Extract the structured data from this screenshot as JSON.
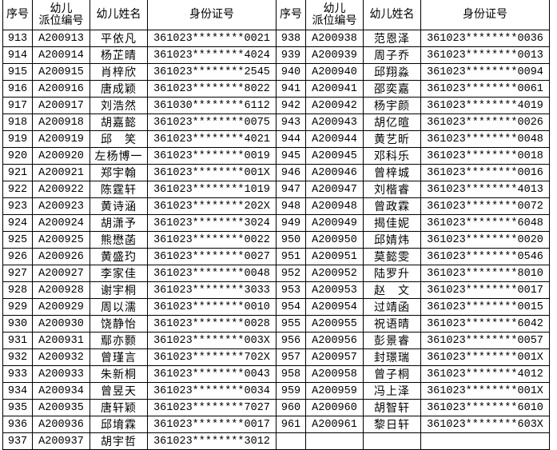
{
  "headers": {
    "seq": "序号",
    "code_line1": "幼儿",
    "code_line2": "派位编号",
    "name": "幼儿姓名",
    "id": "身份证号"
  },
  "left_rows": [
    [
      "913",
      "A200913",
      "平依凡",
      "361023********0021"
    ],
    [
      "914",
      "A200914",
      "杨芷晴",
      "361023********4024"
    ],
    [
      "915",
      "A200915",
      "肖梓欣",
      "361023********2545"
    ],
    [
      "916",
      "A200916",
      "唐成颖",
      "361023********8022"
    ],
    [
      "917",
      "A200917",
      "刘浩然",
      "361030********6112"
    ],
    [
      "918",
      "A200918",
      "胡嘉懿",
      "361023********0075"
    ],
    [
      "919",
      "A200919",
      "邱　笑",
      "361023********4021"
    ],
    [
      "920",
      "A200920",
      "左杨博一",
      "361023********0019"
    ],
    [
      "921",
      "A200921",
      "郑宇翰",
      "361023********001X"
    ],
    [
      "922",
      "A200922",
      "陈霆轩",
      "361023********1019"
    ],
    [
      "923",
      "A200923",
      "黄诗涵",
      "361023********202X"
    ],
    [
      "924",
      "A200924",
      "胡潇予",
      "361023********3024"
    ],
    [
      "925",
      "A200925",
      "熊懋菡",
      "361023********0022"
    ],
    [
      "926",
      "A200926",
      "黄盛玓",
      "361023********0027"
    ],
    [
      "927",
      "A200927",
      "李家佳",
      "361023********0048"
    ],
    [
      "928",
      "A200928",
      "谢宇桐",
      "361023********3033"
    ],
    [
      "929",
      "A200929",
      "周以濡",
      "361023********0010"
    ],
    [
      "930",
      "A200930",
      "饶静怡",
      "361023********0028"
    ],
    [
      "931",
      "A200931",
      "鄢亦颢",
      "361023********003X"
    ],
    [
      "932",
      "A200932",
      "曾瑾言",
      "361023********702X"
    ],
    [
      "933",
      "A200933",
      "朱新桐",
      "361023********0043"
    ],
    [
      "934",
      "A200934",
      "曾昱天",
      "361023********0034"
    ],
    [
      "935",
      "A200935",
      "唐轩颖",
      "361023********7027"
    ],
    [
      "936",
      "A200936",
      "邱堉霖",
      "361023********0017"
    ],
    [
      "937",
      "A200937",
      "胡宇哲",
      "361023********3012"
    ]
  ],
  "right_rows": [
    [
      "938",
      "A200938",
      "范恩泽",
      "361023********0036"
    ],
    [
      "939",
      "A200939",
      "周子乔",
      "361023********0013"
    ],
    [
      "940",
      "A200940",
      "邱翔淼",
      "361023********0094"
    ],
    [
      "941",
      "A200941",
      "邵奕嘉",
      "361023********0061"
    ],
    [
      "942",
      "A200942",
      "杨宇颜",
      "361023********4019"
    ],
    [
      "943",
      "A200943",
      "胡亿暄",
      "361023********0026"
    ],
    [
      "944",
      "A200944",
      "黄艺昕",
      "361023********0048"
    ],
    [
      "945",
      "A200945",
      "邓科乐",
      "361023********0018"
    ],
    [
      "946",
      "A200946",
      "曾梓城",
      "361023********0016"
    ],
    [
      "947",
      "A200947",
      "刘楷睿",
      "361023********4013"
    ],
    [
      "948",
      "A200948",
      "曾政霖",
      "361023********0072"
    ],
    [
      "949",
      "A200949",
      "揭佳妮",
      "361023********6048"
    ],
    [
      "950",
      "A200950",
      "邱婧炜",
      "361023********0020"
    ],
    [
      "951",
      "A200951",
      "莫懿雯",
      "361023********0546"
    ],
    [
      "952",
      "A200952",
      "陆罗升",
      "361023********8010"
    ],
    [
      "953",
      "A200953",
      "赵　文",
      "361023********0017"
    ],
    [
      "954",
      "A200954",
      "过靖函",
      "361023********0015"
    ],
    [
      "955",
      "A200955",
      "祝语晴",
      "361023********6042"
    ],
    [
      "956",
      "A200956",
      "彭景睿",
      "361023********0057"
    ],
    [
      "957",
      "A200957",
      "封璟瑞",
      "361023********001X"
    ],
    [
      "958",
      "A200958",
      "曾子桐",
      "361023********4012"
    ],
    [
      "959",
      "A200959",
      "冯上泽",
      "361023********001X"
    ],
    [
      "960",
      "A200960",
      "胡智轩",
      "361023********6010"
    ],
    [
      "961",
      "A200961",
      "黎日轩",
      "361023********603X"
    ]
  ]
}
